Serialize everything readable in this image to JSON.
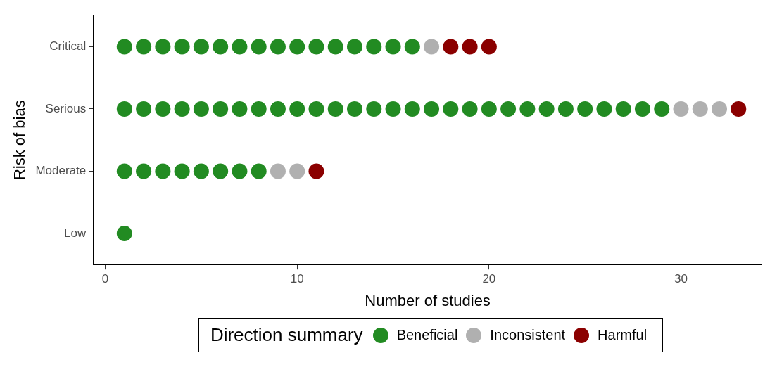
{
  "chart_data": {
    "type": "scatter",
    "orientation": "horizontal",
    "xlabel": "Number of studies",
    "ylabel": "Risk of bias",
    "legend_title": "Direction summary",
    "categories": [
      "Critical",
      "Serious",
      "Moderate",
      "Low"
    ],
    "series": [
      {
        "name": "Beneficial",
        "color": "#228b22",
        "x": [
          "Critical",
          "Critical",
          "Critical",
          "Critical",
          "Critical",
          "Critical",
          "Critical",
          "Critical",
          "Critical",
          "Critical",
          "Critical",
          "Critical",
          "Critical",
          "Critical",
          "Critical",
          "Critical",
          "Serious",
          "Serious",
          "Serious",
          "Serious",
          "Serious",
          "Serious",
          "Serious",
          "Serious",
          "Serious",
          "Serious",
          "Serious",
          "Serious",
          "Serious",
          "Serious",
          "Serious",
          "Serious",
          "Serious",
          "Serious",
          "Serious",
          "Serious",
          "Serious",
          "Serious",
          "Serious",
          "Serious",
          "Serious",
          "Serious",
          "Serious",
          "Serious",
          "Serious",
          "Moderate",
          "Moderate",
          "Moderate",
          "Moderate",
          "Moderate",
          "Moderate",
          "Moderate",
          "Moderate",
          "Low"
        ],
        "values": [
          1,
          2,
          3,
          4,
          5,
          6,
          7,
          8,
          9,
          10,
          11,
          12,
          13,
          14,
          15,
          16,
          1,
          2,
          3,
          4,
          5,
          6,
          7,
          8,
          9,
          10,
          11,
          12,
          13,
          14,
          15,
          16,
          17,
          18,
          19,
          20,
          21,
          22,
          23,
          24,
          25,
          26,
          27,
          28,
          29,
          1,
          2,
          3,
          4,
          5,
          6,
          7,
          8,
          1
        ]
      },
      {
        "name": "Inconsistent",
        "color": "#b0b0b0",
        "x": [
          "Critical",
          "Serious",
          "Serious",
          "Serious",
          "Moderate",
          "Moderate"
        ],
        "values": [
          17,
          30,
          31,
          32,
          9,
          10
        ]
      },
      {
        "name": "Harmful",
        "color": "#8b0000",
        "x": [
          "Critical",
          "Critical",
          "Critical",
          "Serious",
          "Moderate"
        ],
        "values": [
          18,
          19,
          20,
          33,
          11
        ]
      }
    ],
    "xlim": [
      -0.6,
      34.2
    ],
    "xticks": [
      0,
      10,
      20,
      30
    ],
    "grid": false,
    "legend": "bottom",
    "marker": "circle"
  }
}
